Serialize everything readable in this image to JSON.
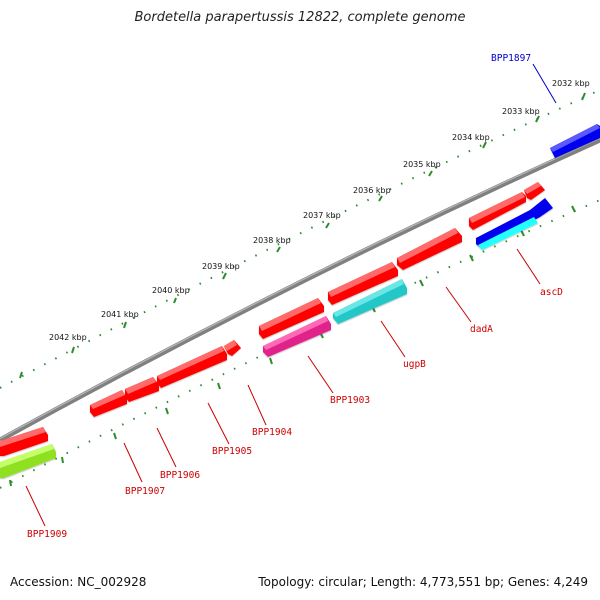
{
  "title": "Bordetella parapertussis 12822, complete genome",
  "footer": {
    "accession": "Accession: NC_002928",
    "stats": "Topology: circular; Length: 4,773,551 bp; Genes: 4,249"
  },
  "colors": {
    "backbone": "#808080",
    "tick": "#2e8b2e",
    "label_red": "#cc0000",
    "label_blue": "#0000cc"
  },
  "ruler": {
    "unit": "kbp",
    "labels": [
      "2032 kbp",
      "2033 kbp",
      "2034 kbp",
      "2035 kbp",
      "2036 kbp",
      "2037 kbp",
      "2038 kbp",
      "2039 kbp",
      "2040 kbp",
      "2041 kbp",
      "2042 kbp"
    ]
  },
  "genes": [
    {
      "name": "BPP1897",
      "strand": "forward",
      "color": "#0000ee",
      "color_name": "blue"
    },
    {
      "name": "ascD",
      "strand": "reverse",
      "color": "#0000ee",
      "color_name": "blue"
    },
    {
      "name": "dadA",
      "strand": "forward",
      "color": "#ff0000",
      "color_name": "red"
    },
    {
      "name": "ugpB",
      "strand": "reverse",
      "color": "#20c8c8",
      "color_name": "cyan"
    },
    {
      "name": "BPP1903",
      "strand": "reverse",
      "color": "#e0208a",
      "color_name": "magenta"
    },
    {
      "name": "BPP1904",
      "strand": "forward",
      "color": "#ff0000",
      "color_name": "red"
    },
    {
      "name": "BPP1905",
      "strand": "forward",
      "color": "#ff0000",
      "color_name": "red"
    },
    {
      "name": "BPP1906",
      "strand": "forward",
      "color": "#ff0000",
      "color_name": "red"
    },
    {
      "name": "BPP1907",
      "strand": "forward",
      "color": "#ff0000",
      "color_name": "red"
    },
    {
      "name": "BPP1909",
      "strand": "reverse",
      "color": "#90e020",
      "color_name": "yellow-green"
    }
  ]
}
